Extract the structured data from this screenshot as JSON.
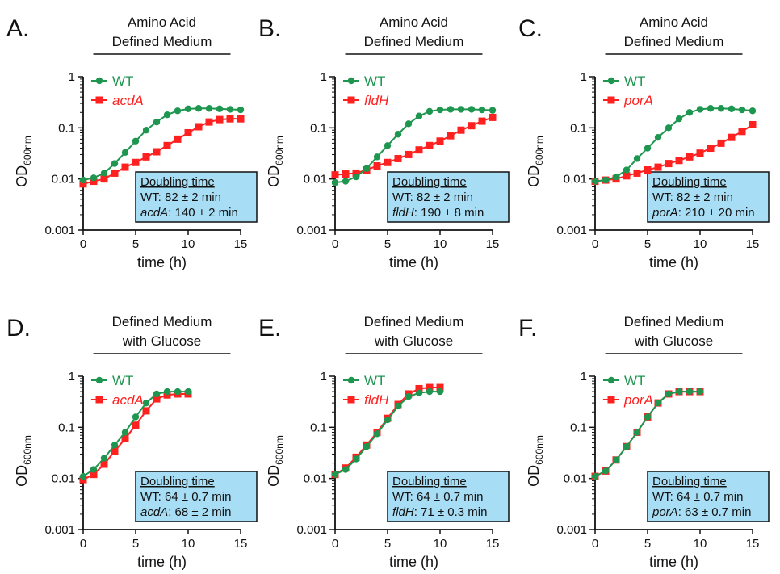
{
  "figure": {
    "colors": {
      "wt": "#1e9650",
      "mutant": "#ff2020",
      "box_fill": "#a8def5",
      "axis": "#111111"
    }
  },
  "chart_data": [
    {
      "panel": "A.",
      "type": "line",
      "title_lines": [
        "Amino Acid",
        "Defined Medium"
      ],
      "xlabel": "time (h)",
      "ylabel": "OD",
      "ylabel_sub": "600nm",
      "y_scale": "log",
      "xlim": [
        0,
        15
      ],
      "ylim": [
        0.001,
        1
      ],
      "x_ticks": [
        "0",
        "5",
        "10",
        "15"
      ],
      "y_ticks": [
        "0.001",
        "0.01",
        "0.1",
        "1"
      ],
      "series": [
        {
          "name": "WT",
          "color": "#1e9650",
          "marker": "circle",
          "x": [
            0,
            1,
            2,
            3,
            4,
            5,
            6,
            7,
            8,
            9,
            10,
            11,
            12,
            13,
            14,
            15
          ],
          "y": [
            0.0095,
            0.0105,
            0.013,
            0.02,
            0.033,
            0.055,
            0.09,
            0.13,
            0.18,
            0.215,
            0.235,
            0.24,
            0.24,
            0.235,
            0.23,
            0.225
          ]
        },
        {
          "name": "acdA",
          "color": "#ff2020",
          "marker": "square",
          "x": [
            0,
            1,
            2,
            3,
            4,
            5,
            6,
            7,
            8,
            9,
            10,
            11,
            12,
            13,
            14,
            15
          ],
          "y": [
            0.008,
            0.009,
            0.01,
            0.013,
            0.017,
            0.021,
            0.027,
            0.034,
            0.045,
            0.06,
            0.08,
            0.105,
            0.13,
            0.145,
            0.15,
            0.15
          ]
        }
      ],
      "doubling_box": {
        "title": "Doubling time",
        "lines": [
          {
            "strain": "WT",
            "value": ": 82 ± 2 min"
          },
          {
            "strain": "acdA",
            "value": ": 140 ± 2 min"
          }
        ]
      }
    },
    {
      "panel": "B.",
      "type": "line",
      "title_lines": [
        "Amino Acid",
        "Defined Medium"
      ],
      "xlabel": "time (h)",
      "ylabel": "OD",
      "ylabel_sub": "600nm",
      "y_scale": "log",
      "xlim": [
        0,
        15
      ],
      "ylim": [
        0.001,
        1
      ],
      "x_ticks": [
        "0",
        "5",
        "10",
        "15"
      ],
      "y_ticks": [
        "0.001",
        "0.01",
        "0.1",
        "1"
      ],
      "series": [
        {
          "name": "WT",
          "color": "#1e9650",
          "marker": "circle",
          "x": [
            0,
            1,
            2,
            3,
            4,
            5,
            6,
            7,
            8,
            9,
            10,
            11,
            12,
            13,
            14,
            15
          ],
          "y": [
            0.0085,
            0.009,
            0.011,
            0.016,
            0.027,
            0.045,
            0.075,
            0.12,
            0.17,
            0.21,
            0.225,
            0.23,
            0.23,
            0.23,
            0.225,
            0.22
          ]
        },
        {
          "name": "fldH",
          "color": "#ff2020",
          "marker": "square",
          "x": [
            0,
            1,
            2,
            3,
            4,
            5,
            6,
            7,
            8,
            9,
            10,
            11,
            12,
            13,
            14,
            15
          ],
          "y": [
            0.012,
            0.0125,
            0.013,
            0.015,
            0.018,
            0.021,
            0.025,
            0.03,
            0.037,
            0.045,
            0.055,
            0.07,
            0.09,
            0.11,
            0.135,
            0.16
          ]
        }
      ],
      "doubling_box": {
        "title": "Doubling time",
        "lines": [
          {
            "strain": "WT",
            "value": ": 82 ± 2 min"
          },
          {
            "strain": "fldH",
            "value": ": 190 ± 8 min"
          }
        ]
      }
    },
    {
      "panel": "C.",
      "type": "line",
      "title_lines": [
        "Amino Acid",
        "Defined Medium"
      ],
      "xlabel": "time (h)",
      "ylabel": "OD",
      "ylabel_sub": "600nm",
      "y_scale": "log",
      "xlim": [
        0,
        15
      ],
      "ylim": [
        0.001,
        1
      ],
      "x_ticks": [
        "0",
        "5",
        "10",
        "15"
      ],
      "y_ticks": [
        "0.001",
        "0.01",
        "0.1",
        "1"
      ],
      "series": [
        {
          "name": "WT",
          "color": "#1e9650",
          "marker": "circle",
          "x": [
            0,
            1,
            2,
            3,
            4,
            5,
            6,
            7,
            8,
            9,
            10,
            11,
            12,
            13,
            14,
            15
          ],
          "y": [
            0.009,
            0.0095,
            0.011,
            0.015,
            0.025,
            0.04,
            0.065,
            0.1,
            0.15,
            0.2,
            0.23,
            0.24,
            0.24,
            0.235,
            0.225,
            0.215
          ]
        },
        {
          "name": "porA",
          "color": "#ff2020",
          "marker": "square",
          "x": [
            0,
            1,
            2,
            3,
            4,
            5,
            6,
            7,
            8,
            9,
            10,
            11,
            12,
            13,
            14,
            15
          ],
          "y": [
            0.009,
            0.0095,
            0.01,
            0.0115,
            0.013,
            0.015,
            0.017,
            0.02,
            0.023,
            0.027,
            0.032,
            0.04,
            0.05,
            0.065,
            0.085,
            0.115
          ]
        }
      ],
      "doubling_box": {
        "title": "Doubling time",
        "lines": [
          {
            "strain": "WT",
            "value": ": 82 ± 2 min"
          },
          {
            "strain": "porA",
            "value": ": 210 ± 20 min"
          }
        ]
      }
    },
    {
      "panel": "D.",
      "type": "line",
      "title_lines": [
        "Defined Medium",
        "with Glucose"
      ],
      "xlabel": "time (h)",
      "ylabel": "OD",
      "ylabel_sub": "600nm",
      "y_scale": "log",
      "xlim": [
        0,
        15
      ],
      "ylim": [
        0.001,
        1
      ],
      "x_ticks": [
        "0",
        "5",
        "10",
        "15"
      ],
      "y_ticks": [
        "0.001",
        "0.01",
        "0.1",
        "1"
      ],
      "series": [
        {
          "name": "WT",
          "color": "#1e9650",
          "marker": "circle",
          "x": [
            0,
            1,
            2,
            3,
            4,
            5,
            6,
            7,
            8,
            9,
            10
          ],
          "y": [
            0.011,
            0.015,
            0.025,
            0.045,
            0.08,
            0.16,
            0.3,
            0.45,
            0.5,
            0.5,
            0.5
          ]
        },
        {
          "name": "acdA",
          "color": "#ff2020",
          "marker": "square",
          "x": [
            0,
            1,
            2,
            3,
            4,
            5,
            6,
            7,
            8,
            9,
            10
          ],
          "y": [
            0.0095,
            0.012,
            0.019,
            0.034,
            0.06,
            0.11,
            0.21,
            0.36,
            0.43,
            0.45,
            0.45
          ]
        }
      ],
      "doubling_box": {
        "title": "Doubling time",
        "lines": [
          {
            "strain": "WT",
            "value": ": 64 ± 0.7 min"
          },
          {
            "strain": "acdA",
            "value": ": 68 ± 2 min"
          }
        ]
      }
    },
    {
      "panel": "E.",
      "type": "line",
      "title_lines": [
        "Defined Medium",
        "with Glucose"
      ],
      "xlabel": "time (h)",
      "ylabel": "OD",
      "ylabel_sub": "600nm",
      "y_scale": "log",
      "xlim": [
        0,
        15
      ],
      "ylim": [
        0.001,
        1
      ],
      "x_ticks": [
        "0",
        "5",
        "10",
        "15"
      ],
      "y_ticks": [
        "0.001",
        "0.01",
        "0.1",
        "1"
      ],
      "series": [
        {
          "name": "WT",
          "color": "#1e9650",
          "marker": "circle",
          "x": [
            0,
            1,
            2,
            3,
            4,
            5,
            6,
            7,
            8,
            9,
            10
          ],
          "y": [
            0.012,
            0.015,
            0.024,
            0.042,
            0.075,
            0.14,
            0.26,
            0.4,
            0.47,
            0.5,
            0.5
          ]
        },
        {
          "name": "fldH",
          "color": "#ff2020",
          "marker": "square",
          "x": [
            0,
            1,
            2,
            3,
            4,
            5,
            6,
            7,
            8,
            9,
            10
          ],
          "y": [
            0.012,
            0.016,
            0.026,
            0.045,
            0.08,
            0.15,
            0.28,
            0.45,
            0.57,
            0.6,
            0.6
          ]
        }
      ],
      "doubling_box": {
        "title": "Doubling time",
        "lines": [
          {
            "strain": "WT",
            "value": ": 64 ± 0.7 min"
          },
          {
            "strain": "fldH",
            "value": ": 71 ± 0.3 min"
          }
        ]
      }
    },
    {
      "panel": "F.",
      "type": "line",
      "title_lines": [
        "Defined Medium",
        "with Glucose"
      ],
      "xlabel": "time (h)",
      "ylabel": "OD",
      "ylabel_sub": "600nm",
      "y_scale": "log",
      "xlim": [
        0,
        15
      ],
      "ylim": [
        0.001,
        1
      ],
      "x_ticks": [
        "0",
        "5",
        "10",
        "15"
      ],
      "y_ticks": [
        "0.001",
        "0.01",
        "0.1",
        "1"
      ],
      "series": [
        {
          "name": "WT",
          "color": "#1e9650",
          "marker": "circle",
          "x": [
            0,
            1,
            2,
            3,
            4,
            5,
            6,
            7,
            8,
            9,
            10
          ],
          "y": [
            0.011,
            0.014,
            0.023,
            0.042,
            0.08,
            0.16,
            0.3,
            0.45,
            0.5,
            0.5,
            0.5
          ]
        },
        {
          "name": "porA",
          "color": "#ff2020",
          "marker": "square",
          "x": [
            0,
            1,
            2,
            3,
            4,
            5,
            6,
            7,
            8,
            9,
            10
          ],
          "y": [
            0.011,
            0.014,
            0.023,
            0.042,
            0.08,
            0.16,
            0.3,
            0.45,
            0.5,
            0.5,
            0.5
          ]
        }
      ],
      "doubling_box": {
        "title": "Doubling time",
        "lines": [
          {
            "strain": "WT",
            "value": ": 64 ± 0.7 min"
          },
          {
            "strain": "porA",
            "value": ": 63 ± 0.7 min"
          }
        ]
      }
    }
  ]
}
